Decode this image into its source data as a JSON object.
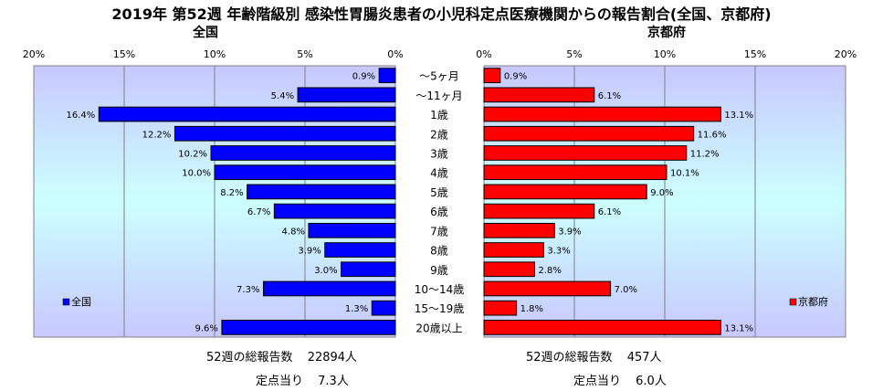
{
  "title": "2019年 第52週 年齢階級別 感染性胃腸炎患者の小児科定点医療機関からの報告割合(全国、京都府)",
  "chart_data": [
    {
      "type": "bar",
      "orientation": "horizontal",
      "title": "全国",
      "direction": "right-to-left",
      "categories": [
        "～5ヶ月",
        "～11ヶ月",
        "1歳",
        "2歳",
        "3歳",
        "4歳",
        "5歳",
        "6歳",
        "7歳",
        "8歳",
        "9歳",
        "10～14歳",
        "15～19歳",
        "20歳以上"
      ],
      "series": [
        {
          "name": "全国",
          "color": "#0000ff",
          "values": [
            0.9,
            5.4,
            16.4,
            12.2,
            10.2,
            10.0,
            8.2,
            6.7,
            4.8,
            3.9,
            3.0,
            7.3,
            1.3,
            9.6
          ],
          "labels": [
            "0.9%",
            "5.4%",
            "16.4%",
            "12.2%",
            "10.2%",
            "10.0%",
            "8.2%",
            "6.7%",
            "4.8%",
            "3.9%",
            "3.0%",
            "7.3%",
            "1.3%",
            "9.6%"
          ]
        }
      ],
      "xlim": [
        0,
        20
      ],
      "xticks": [
        "20%",
        "15%",
        "10%",
        "5%",
        "0%"
      ],
      "legend": "bottom-left",
      "grid": true
    },
    {
      "type": "bar",
      "orientation": "horizontal",
      "title": "京都府",
      "direction": "left-to-right",
      "categories": [
        "～5ヶ月",
        "～11ヶ月",
        "1歳",
        "2歳",
        "3歳",
        "4歳",
        "5歳",
        "6歳",
        "7歳",
        "8歳",
        "9歳",
        "10～14歳",
        "15～19歳",
        "20歳以上"
      ],
      "series": [
        {
          "name": "京都府",
          "color": "#ff0000",
          "values": [
            0.9,
            6.1,
            13.1,
            11.6,
            11.2,
            10.1,
            9.0,
            6.1,
            3.9,
            3.3,
            2.8,
            7.0,
            1.8,
            13.1
          ],
          "labels": [
            "0.9%",
            "6.1%",
            "13.1%",
            "11.6%",
            "11.2%",
            "10.1%",
            "9.0%",
            "6.1%",
            "3.9%",
            "3.3%",
            "2.8%",
            "7.0%",
            "1.8%",
            "13.1%"
          ]
        }
      ],
      "xlim": [
        0,
        20
      ],
      "xticks": [
        "0%",
        "5%",
        "10%",
        "15%",
        "20%"
      ],
      "legend": "bottom-right",
      "grid": true
    }
  ],
  "footer": {
    "national": {
      "total_label": "52週の総報告数",
      "total_value": "22894人",
      "per_label": "定点当り",
      "per_value": "7.3人"
    },
    "kyoto": {
      "total_label": "52週の総報告数",
      "total_value": "457人",
      "per_label": "定点当り",
      "per_value": "6.0人"
    }
  },
  "colors": {
    "plot_bg_top": "#c8c8ff",
    "plot_bg_mid": "#ccffff",
    "plot_bg_bottom": "#c8c8ff",
    "grid": "#808080"
  }
}
